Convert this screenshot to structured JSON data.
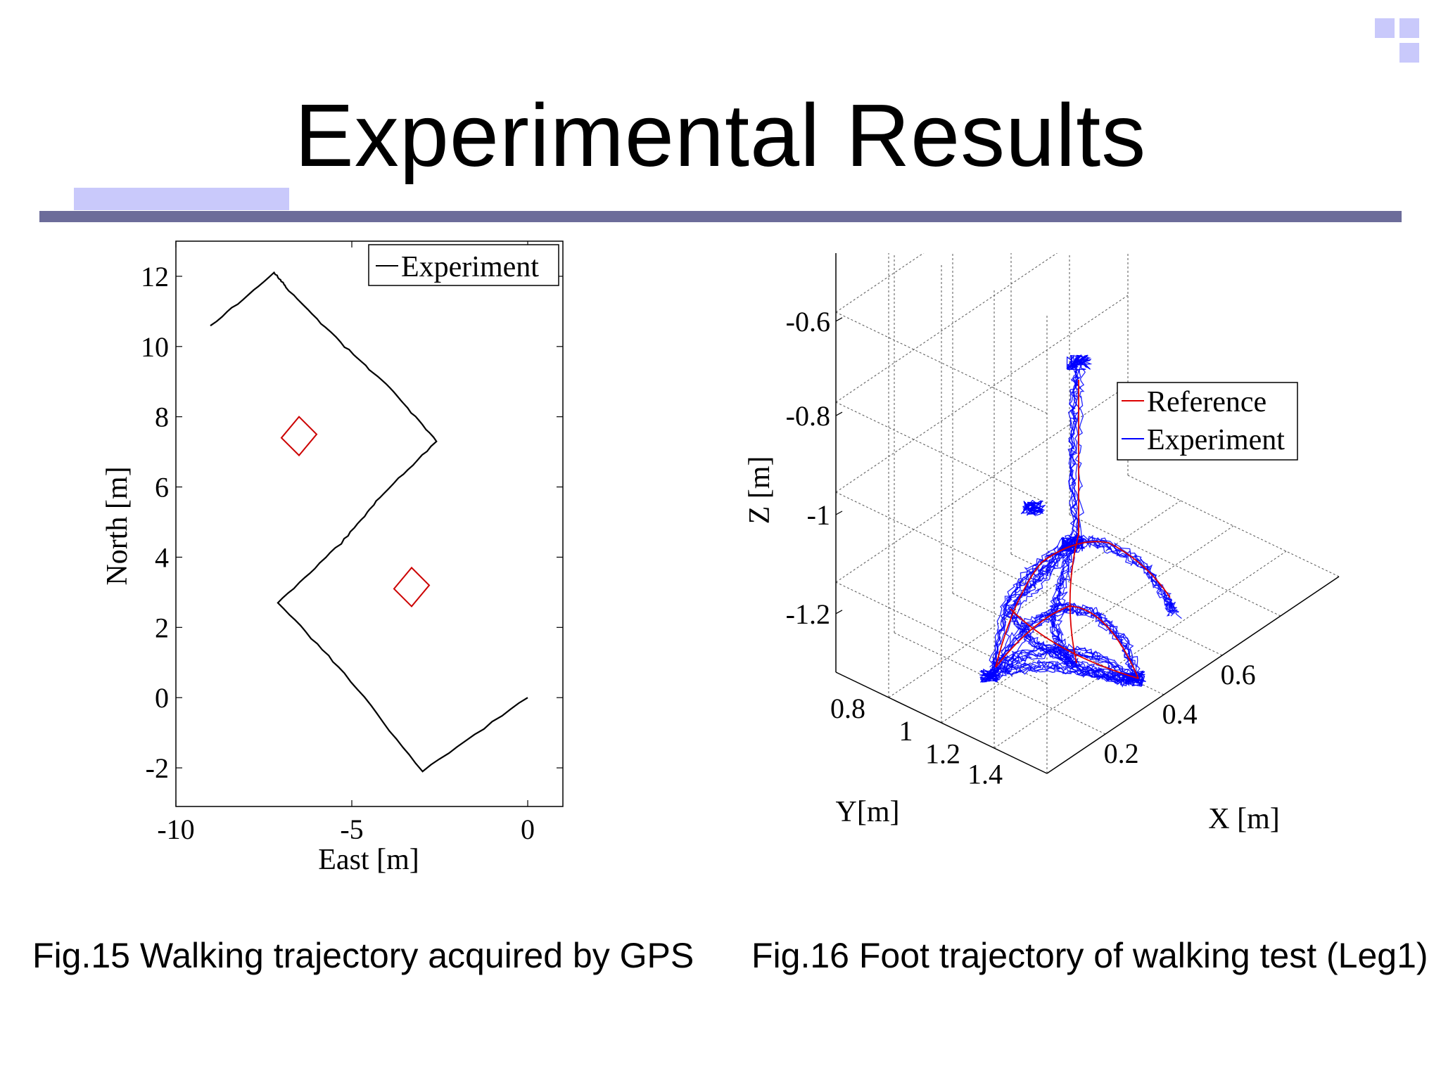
{
  "slide": {
    "title": "Experimental Results",
    "accent_color": "#c9c9fb",
    "rule_color": "#6c6c9a"
  },
  "captions": {
    "fig15": "Fig.15 Walking trajectory acquired by GPS",
    "fig16": "Fig.16 Foot trajectory of walking test (Leg1)"
  },
  "chart_data": [
    {
      "type": "line",
      "xlabel": "East [m]",
      "ylabel": "North [m]",
      "xlim": [
        -10,
        1
      ],
      "ylim": [
        -3.1,
        13
      ],
      "xticks": [
        -10,
        -5,
        0
      ],
      "yticks": [
        -2,
        0,
        2,
        4,
        6,
        8,
        10,
        12
      ],
      "legend": {
        "entries": [
          "Experiment"
        ],
        "placement": "top-right"
      },
      "series": [
        {
          "name": "Experiment",
          "color": "#000000",
          "points": [
            [
              -9,
              10.6
            ],
            [
              -7.2,
              12.1
            ],
            [
              -6.8,
              11.6
            ],
            [
              -5.2,
              10.0
            ],
            [
              -3.8,
              8.7
            ],
            [
              -2.6,
              7.3
            ],
            [
              -4.2,
              5.7
            ],
            [
              -5.3,
              4.4
            ],
            [
              -7.1,
              2.7
            ],
            [
              -5.2,
              0.7
            ],
            [
              -3.0,
              -2.1
            ],
            [
              0,
              0
            ]
          ]
        }
      ],
      "markers": [
        {
          "color": "#cc0000",
          "corners": [
            [
              -7.0,
              7.4
            ],
            [
              -6.5,
              8.0
            ],
            [
              -6.0,
              7.5
            ],
            [
              -6.5,
              6.9
            ]
          ]
        },
        {
          "color": "#cc0000",
          "corners": [
            [
              -3.8,
              3.1
            ],
            [
              -3.3,
              3.7
            ],
            [
              -2.8,
              3.2
            ],
            [
              -3.3,
              2.6
            ]
          ]
        }
      ]
    },
    {
      "type": "line",
      "xlabel": "X [m]",
      "ylabel": "Y[m]",
      "zlabel": "Z [m]",
      "xticks": [
        "0.2",
        "0.4",
        "0.6"
      ],
      "yticks": [
        "0.8",
        "1",
        "1.2",
        "1.4"
      ],
      "zticks": [
        "-0.6",
        "-0.8",
        "-1",
        "-1.2"
      ],
      "grid": true,
      "legend": {
        "entries": [
          "Reference",
          "Experiment"
        ],
        "placement": "top-right"
      },
      "series": [
        {
          "name": "Reference",
          "color": "#dd0000"
        },
        {
          "name": "Experiment",
          "color": "#0000ff"
        }
      ]
    }
  ]
}
